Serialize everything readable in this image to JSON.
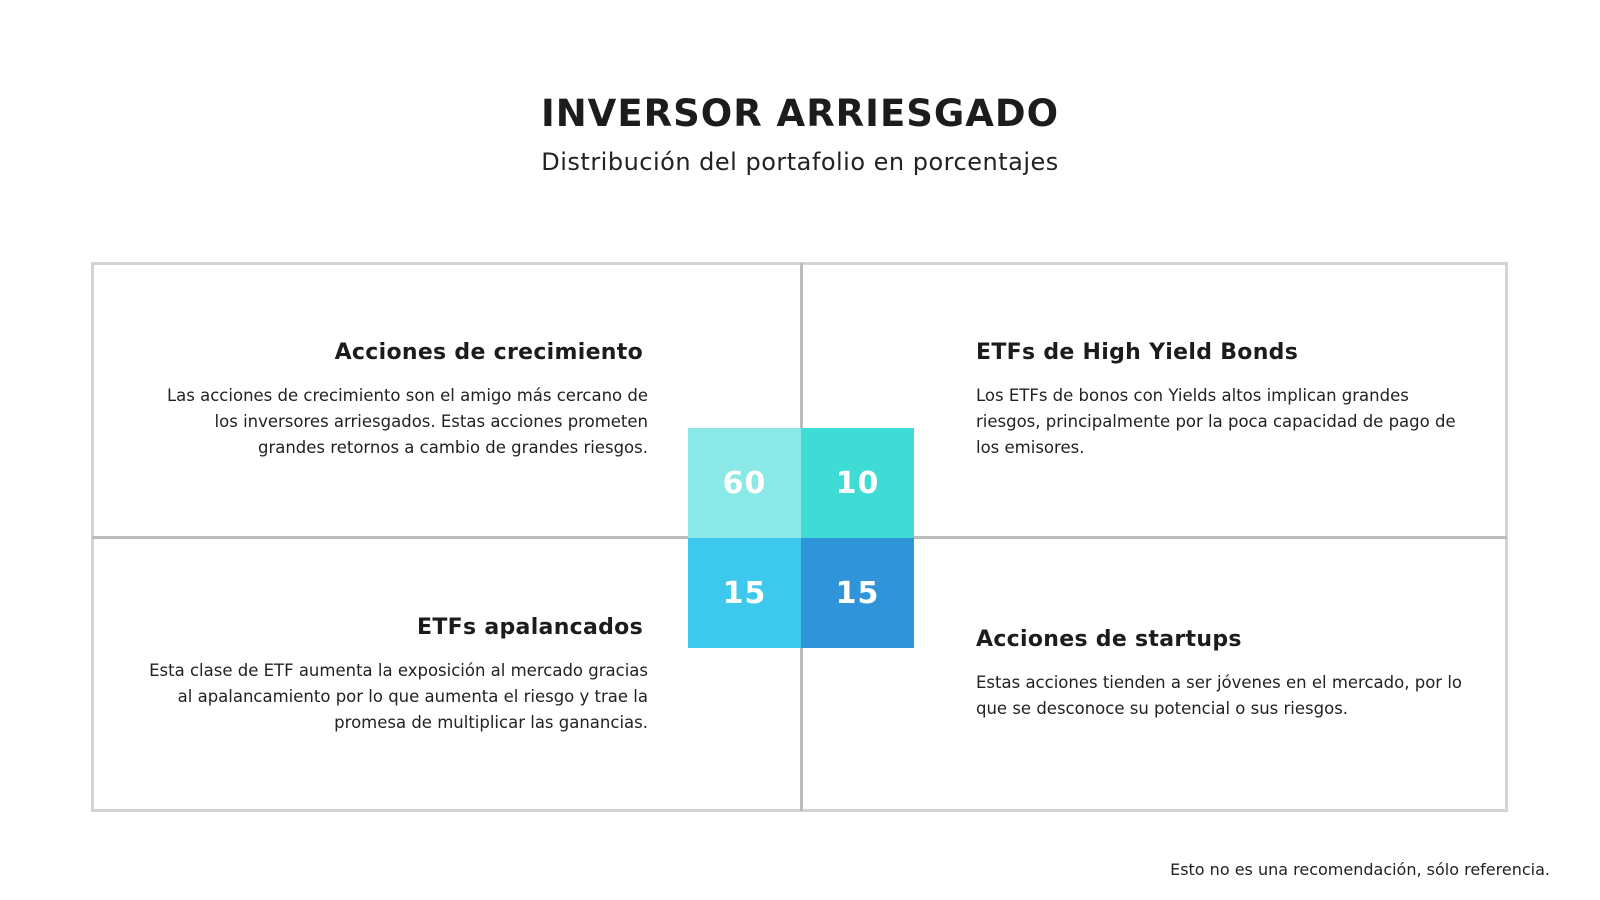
{
  "header": {
    "title": "INVERSOR ARRIESGADO",
    "subtitle": "Distribución del portafolio en porcentajes"
  },
  "quadrants": [
    {
      "heading": "Acciones de crecimiento",
      "lines": [
        "Las acciones de crecimiento son el amigo más cercano de",
        "los inversores arriesgados. Estas acciones prometen",
        "grandes retornos a cambio de grandes riesgos."
      ]
    },
    {
      "heading": "ETFs de High Yield Bonds",
      "lines": [
        "Los ETFs de bonos con Yields altos implican grandes",
        "riesgos, principalmente por la poca capacidad de pago de",
        "los emisores."
      ]
    },
    {
      "heading": "ETFs apalancados",
      "lines": [
        "Esta clase de ETF aumenta la exposición al mercado gracias",
        "al apalancamiento por lo que aumenta el riesgo y trae la",
        "promesa de multiplicar las ganancias."
      ]
    },
    {
      "heading": "Acciones de startups",
      "lines": [
        "Estas acciones tienden a ser jóvenes en el mercado, por lo",
        "que se desconoce su potencial o sus riesgos."
      ]
    }
  ],
  "tiles": [
    {
      "value": "60",
      "color": "#8ae8e6"
    },
    {
      "value": "10",
      "color": "#3fdcd6"
    },
    {
      "value": "15",
      "color": "#3dc9ee"
    },
    {
      "value": "15",
      "color": "#2f94d9"
    }
  ],
  "footer": {
    "note": "Esto no es una recomendación, sólo referencia."
  }
}
